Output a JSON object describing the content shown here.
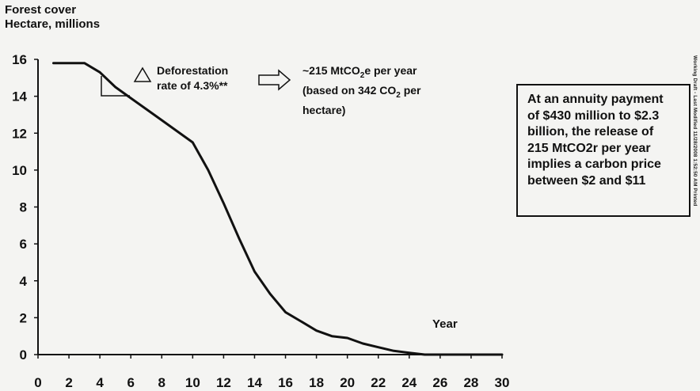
{
  "chart_data": {
    "type": "line",
    "title": "Forest cover",
    "ylabel": "Hectare, millions",
    "xlabel": "Year",
    "xlim": [
      0,
      30
    ],
    "ylim": [
      0,
      16
    ],
    "x_ticks": [
      0,
      2,
      4,
      6,
      8,
      10,
      12,
      14,
      16,
      18,
      20,
      22,
      24,
      26,
      28,
      30
    ],
    "y_ticks": [
      0,
      2,
      4,
      6,
      8,
      10,
      12,
      14,
      16
    ],
    "grid": false,
    "series": [
      {
        "x": [
          1,
          2,
          3,
          4,
          5,
          6,
          7,
          8,
          9,
          10,
          11,
          12,
          13,
          14,
          15,
          16,
          17,
          18,
          19,
          20,
          21,
          22,
          23,
          24,
          25,
          26,
          27,
          28,
          29,
          30
        ],
        "y": [
          15.8,
          15.8,
          15.8,
          15.3,
          14.5,
          13.9,
          13.3,
          12.7,
          12.1,
          11.5,
          10.0,
          8.2,
          6.3,
          4.5,
          3.3,
          2.3,
          1.8,
          1.3,
          1.0,
          0.9,
          0.6,
          0.4,
          0.2,
          0.1,
          0.0,
          0.0,
          0.0,
          0.0,
          0.0,
          0.0
        ]
      }
    ],
    "annotations": {
      "triangle_symbol": "△",
      "deforestation_line1": "Deforestation",
      "deforestation_line2": "rate of 4.3%**",
      "arrow": "right-arrow",
      "emissions_line1_a": "~215 MtCO",
      "emissions_line1_sub": "2",
      "emissions_line1_b": "e per year",
      "emissions_line2_a": "(based on 342 CO",
      "emissions_line2_sub": "2",
      "emissions_line2_b": " per",
      "emissions_line3": "hectare)"
    }
  },
  "callout": {
    "lines": [
      "At an annuity payment",
      "of $430 million to $2.3",
      "billion, the release of",
      "215 MtCO2r per year",
      "implies a carbon price",
      "between $2 and $11"
    ]
  },
  "side_note": "Working Draft - Last Modified 11/28/2008 1:52:50 AM   Printed",
  "colors": {
    "line": "#111111",
    "background": "#f4f4f2"
  }
}
